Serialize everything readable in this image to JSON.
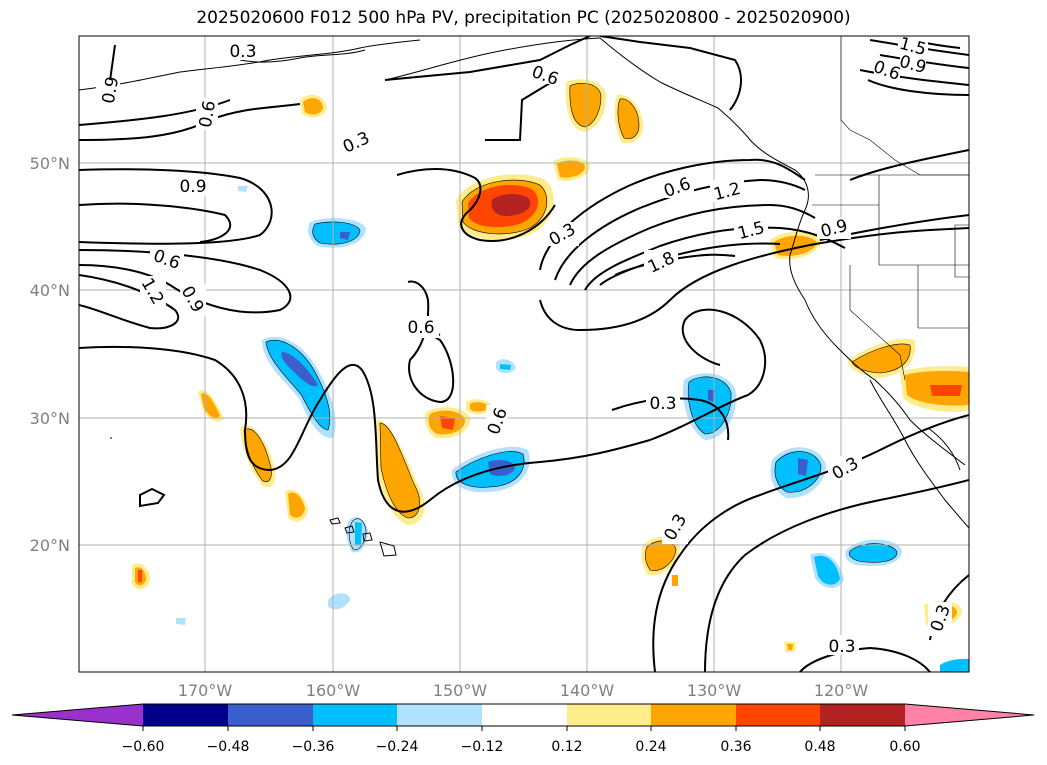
{
  "title": "2025020600 F012 500 hPa PV, precipitation PC (2025020800 - 2025020900)",
  "lat_labels": [
    "50°N",
    "40°N",
    "30°N",
    "20°N"
  ],
  "lon_labels": [
    "170°W",
    "160°W",
    "150°W",
    "140°W",
    "130°W",
    "120°W"
  ],
  "colorbar": {
    "ticks": [
      "−0.60",
      "−0.48",
      "−0.36",
      "−0.24",
      "−0.12",
      "0.12",
      "0.24",
      "0.36",
      "0.48",
      "0.60"
    ],
    "colors": [
      "#9932cc",
      "#00008b",
      "#3a5fcd",
      "#00bfff",
      "#b0e2ff",
      "#ffffff",
      "#ffec8b",
      "#ffa500",
      "#ff4500",
      "#b22222",
      "#ff83a8"
    ]
  },
  "contour_labels": [
    {
      "text": "0.3"
    },
    {
      "text": "0.6"
    },
    {
      "text": "0.9"
    },
    {
      "text": "0.6"
    },
    {
      "text": "0.3"
    },
    {
      "text": "0.9"
    },
    {
      "text": "0.6"
    },
    {
      "text": "1.2"
    },
    {
      "text": "0.9"
    },
    {
      "text": "0.6"
    },
    {
      "text": "0.3"
    },
    {
      "text": "0.6"
    },
    {
      "text": "1.2"
    },
    {
      "text": "1.5"
    },
    {
      "text": "1.8"
    },
    {
      "text": "0.9"
    },
    {
      "text": "0.6"
    },
    {
      "text": "0.3"
    },
    {
      "text": "0.3"
    },
    {
      "text": "0.3"
    },
    {
      "text": "0.3"
    },
    {
      "text": "0.3"
    },
    {
      "text": "1.5"
    },
    {
      "text": "0.9"
    },
    {
      "text": "0.6"
    }
  ],
  "colors": {
    "contour": "#000000",
    "grid": "#b0b0b0",
    "coast": "#000000"
  }
}
